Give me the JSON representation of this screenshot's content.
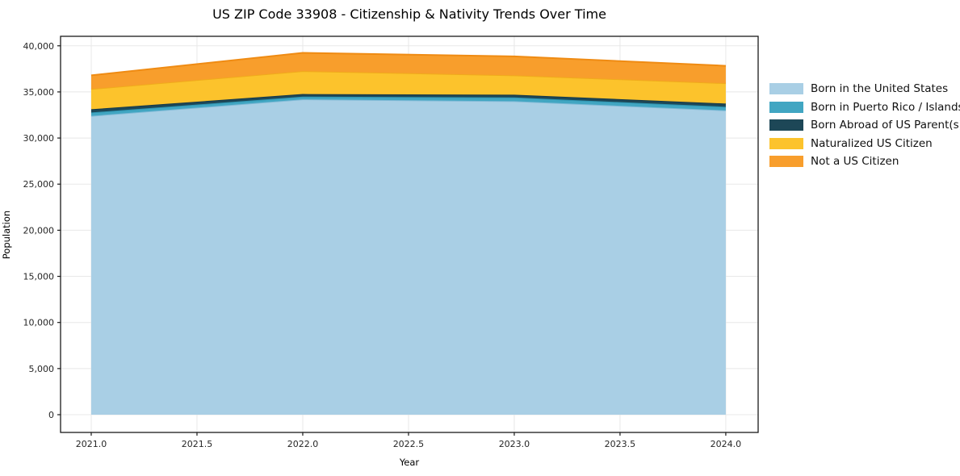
{
  "chart_data": {
    "type": "area",
    "stacked": true,
    "title": "US ZIP Code 33908 - Citizenship & Nativity Trends Over Time",
    "xlabel": "Year",
    "ylabel": "Population",
    "x": [
      2021,
      2022,
      2023,
      2024
    ],
    "series": [
      {
        "name": "Born in the United States",
        "color": "#a9cfe5",
        "edge": "#7fb9d6",
        "values": [
          32400,
          34200,
          34000,
          33000
        ]
      },
      {
        "name": "Born in Puerto Rico / Islands",
        "color": "#41a6c2",
        "edge": "#2e94b0",
        "values": [
          370,
          290,
          400,
          390
        ]
      },
      {
        "name": "Born Abroad of US Parent(s)",
        "color": "#1d4757",
        "edge": "#16394a",
        "values": [
          350,
          280,
          300,
          350
        ]
      },
      {
        "name": "Naturalized US Citizen",
        "color": "#fcc32c",
        "edge": "#f0ab1b",
        "values": [
          2200,
          2490,
          2100,
          2200
        ]
      },
      {
        "name": "Not a US Citizen",
        "color": "#f89e2c",
        "edge": "#ef8b13",
        "values": [
          1480,
          1980,
          2050,
          1890
        ]
      }
    ],
    "x_ticks": [
      2021.0,
      2021.5,
      2022.0,
      2022.5,
      2023.0,
      2023.5,
      2024.0
    ],
    "y_ticks": [
      0,
      5000,
      10000,
      15000,
      20000,
      25000,
      30000,
      35000,
      40000
    ],
    "xlim": [
      2020.855,
      2024.153
    ],
    "ylim": [
      -1925,
      41030
    ],
    "grid": true,
    "legend_position": "right",
    "colors": {
      "grid": "#e8e8e8",
      "spine": "#1a1a1a",
      "tick_label": "#262626"
    }
  }
}
